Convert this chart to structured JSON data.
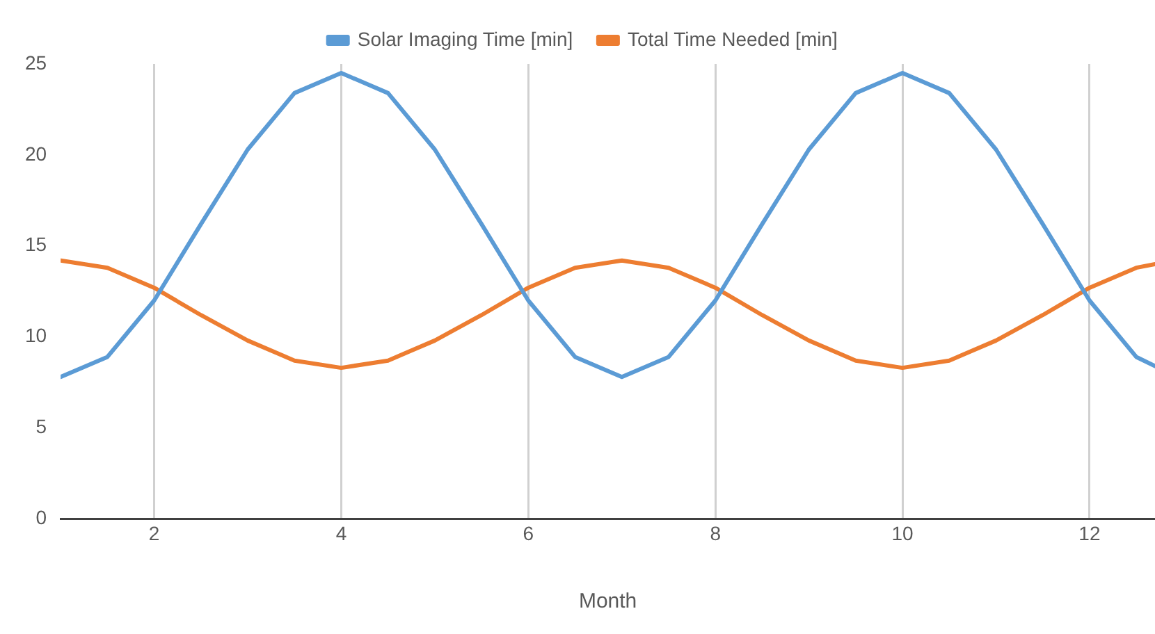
{
  "chart_data": {
    "type": "line",
    "xlabel": "Month",
    "legend": "top",
    "grid": "x",
    "marker": "none",
    "line_style": "solid",
    "xlim": [
      1,
      12.7
    ],
    "xticks": [
      2,
      4,
      6,
      8,
      10,
      12
    ],
    "ylim": [
      0,
      25
    ],
    "yticks": [
      0,
      5,
      10,
      15,
      20,
      25
    ],
    "x": [
      1,
      1.5,
      2,
      2.5,
      3,
      3.5,
      4,
      4.5,
      5,
      5.5,
      6,
      6.5,
      7,
      7.5,
      8,
      8.5,
      9,
      9.5,
      10,
      10.5,
      11,
      11.5,
      12,
      12.5,
      12.7
    ],
    "series": [
      {
        "name": "Solar Imaging Time [min]",
        "color": "#5b9bd5",
        "values": [
          7.8,
          8.9,
          12,
          16.2,
          20.3,
          23.4,
          24.5,
          23.4,
          20.3,
          16.2,
          12,
          8.9,
          7.8,
          8.9,
          12,
          16.2,
          20.3,
          23.4,
          24.5,
          23.4,
          20.3,
          16.2,
          12,
          8.9,
          8.4
        ]
      },
      {
        "name": "Total Time Needed [min]",
        "color": "#ed7d31",
        "values": [
          14.2,
          13.8,
          12.7,
          11.2,
          9.8,
          8.7,
          8.3,
          8.7,
          9.8,
          11.2,
          12.7,
          13.8,
          14.2,
          13.8,
          12.7,
          11.2,
          9.8,
          8.7,
          8.3,
          8.7,
          9.8,
          11.2,
          12.7,
          13.8,
          14
        ]
      }
    ]
  }
}
